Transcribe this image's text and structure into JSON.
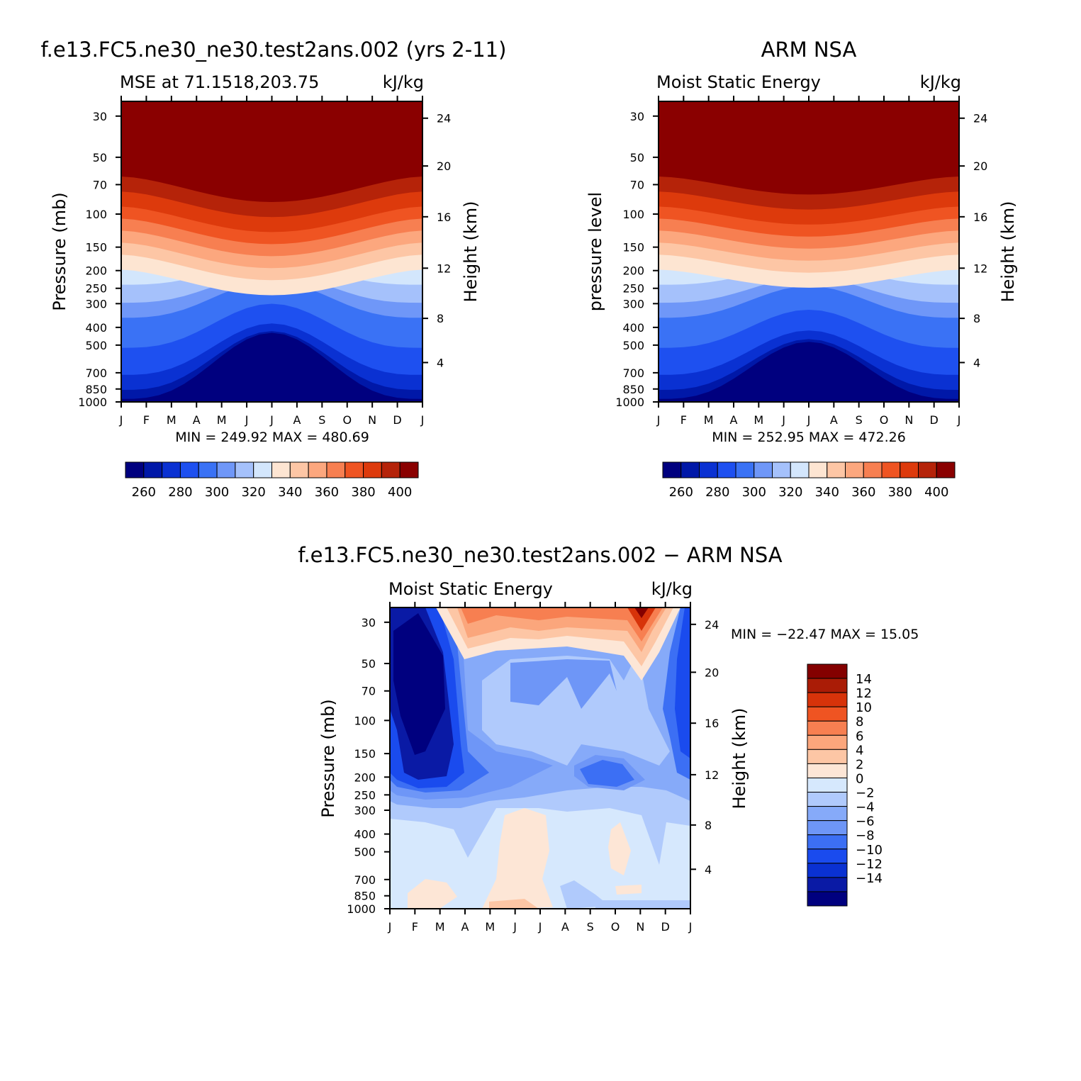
{
  "chart_data": [
    {
      "type": "heatmap",
      "title": "f.e13.FC5.ne30_ne30.test2ans.002 (yrs 2-11)",
      "subtitle_left": "MSE at 71.1518,203.75",
      "subtitle_right": "kJ/kg",
      "ylabel": "Pressure (mb)",
      "ylabel_right": "Height (km)",
      "x_ticks": [
        "J",
        "F",
        "M",
        "A",
        "M",
        "J",
        "J",
        "A",
        "S",
        "O",
        "N",
        "D",
        "J"
      ],
      "y_ticks": [
        "30",
        "50",
        "70",
        "100",
        "150",
        "200",
        "250",
        "300",
        "400",
        "500",
        "700",
        "850",
        "1000"
      ],
      "y_right_ticks": [
        "24",
        "20",
        "16",
        "12",
        "8",
        "4"
      ],
      "minmax": "MIN = 249.92 MAX = 480.69",
      "min": 249.92,
      "max": 480.69,
      "legend_labels": [
        "260",
        "280",
        "300",
        "320",
        "340",
        "360",
        "380",
        "400"
      ],
      "legend_placement": "bottom"
    },
    {
      "type": "heatmap",
      "title": "ARM NSA",
      "subtitle_left": "Moist Static Energy",
      "subtitle_right": "kJ/kg",
      "ylabel": "pressure level",
      "ylabel_right": "Height (km)",
      "x_ticks": [
        "J",
        "F",
        "M",
        "A",
        "M",
        "J",
        "J",
        "A",
        "S",
        "O",
        "N",
        "D",
        "J"
      ],
      "y_ticks": [
        "30",
        "50",
        "70",
        "100",
        "150",
        "200",
        "250",
        "300",
        "400",
        "500",
        "700",
        "850",
        "1000"
      ],
      "y_right_ticks": [
        "24",
        "20",
        "16",
        "12",
        "8",
        "4"
      ],
      "minmax": "MIN = 252.95 MAX = 472.26",
      "min": 252.95,
      "max": 472.26,
      "legend_labels": [
        "260",
        "280",
        "300",
        "320",
        "340",
        "360",
        "380",
        "400"
      ],
      "legend_placement": "bottom"
    },
    {
      "type": "heatmap",
      "title": "f.e13.FC5.ne30_ne30.test2ans.002 − ARM NSA",
      "subtitle_left": "Moist Static Energy",
      "subtitle_right": "kJ/kg",
      "ylabel": "Pressure (mb)",
      "ylabel_right": "Height (km)",
      "x_ticks": [
        "J",
        "F",
        "M",
        "A",
        "M",
        "J",
        "J",
        "A",
        "S",
        "O",
        "N",
        "D",
        "J"
      ],
      "y_ticks": [
        "30",
        "50",
        "70",
        "100",
        "150",
        "200",
        "250",
        "300",
        "400",
        "500",
        "700",
        "850",
        "1000"
      ],
      "y_right_ticks": [
        "24",
        "20",
        "16",
        "12",
        "8",
        "4"
      ],
      "minmax": "MIN = −22.47 MAX =   15.05",
      "min": -22.47,
      "max": 15.05,
      "legend_labels": [
        "14",
        "12",
        "10",
        "8",
        "6",
        "4",
        "2",
        "0",
        "−2",
        "−4",
        "−6",
        "−8",
        "−10",
        "−12",
        "−14"
      ],
      "legend_placement": "right"
    }
  ],
  "colors": {
    "mse_scale": [
      "#00007f",
      "#0018a8",
      "#0a31d2",
      "#1e50f0",
      "#3a72f5",
      "#6f97f8",
      "#a5c1fb",
      "#d3e6fc",
      "#fde5d2",
      "#fdc6a5",
      "#fca77e",
      "#f77f51",
      "#ef5422",
      "#dd3a0c",
      "#b52309",
      "#8a0000"
    ],
    "diff_scale": [
      "#00007f",
      "#0a1aa5",
      "#0a31d2",
      "#1a4bee",
      "#3c6ff4",
      "#6e96f7",
      "#86aaf9",
      "#b0cafc",
      "#d6e8fd",
      "#fde6d6",
      "#fdc6a5",
      "#fba67c",
      "#f77f51",
      "#ef5422",
      "#d7330a",
      "#aa1c06",
      "#840000"
    ]
  }
}
